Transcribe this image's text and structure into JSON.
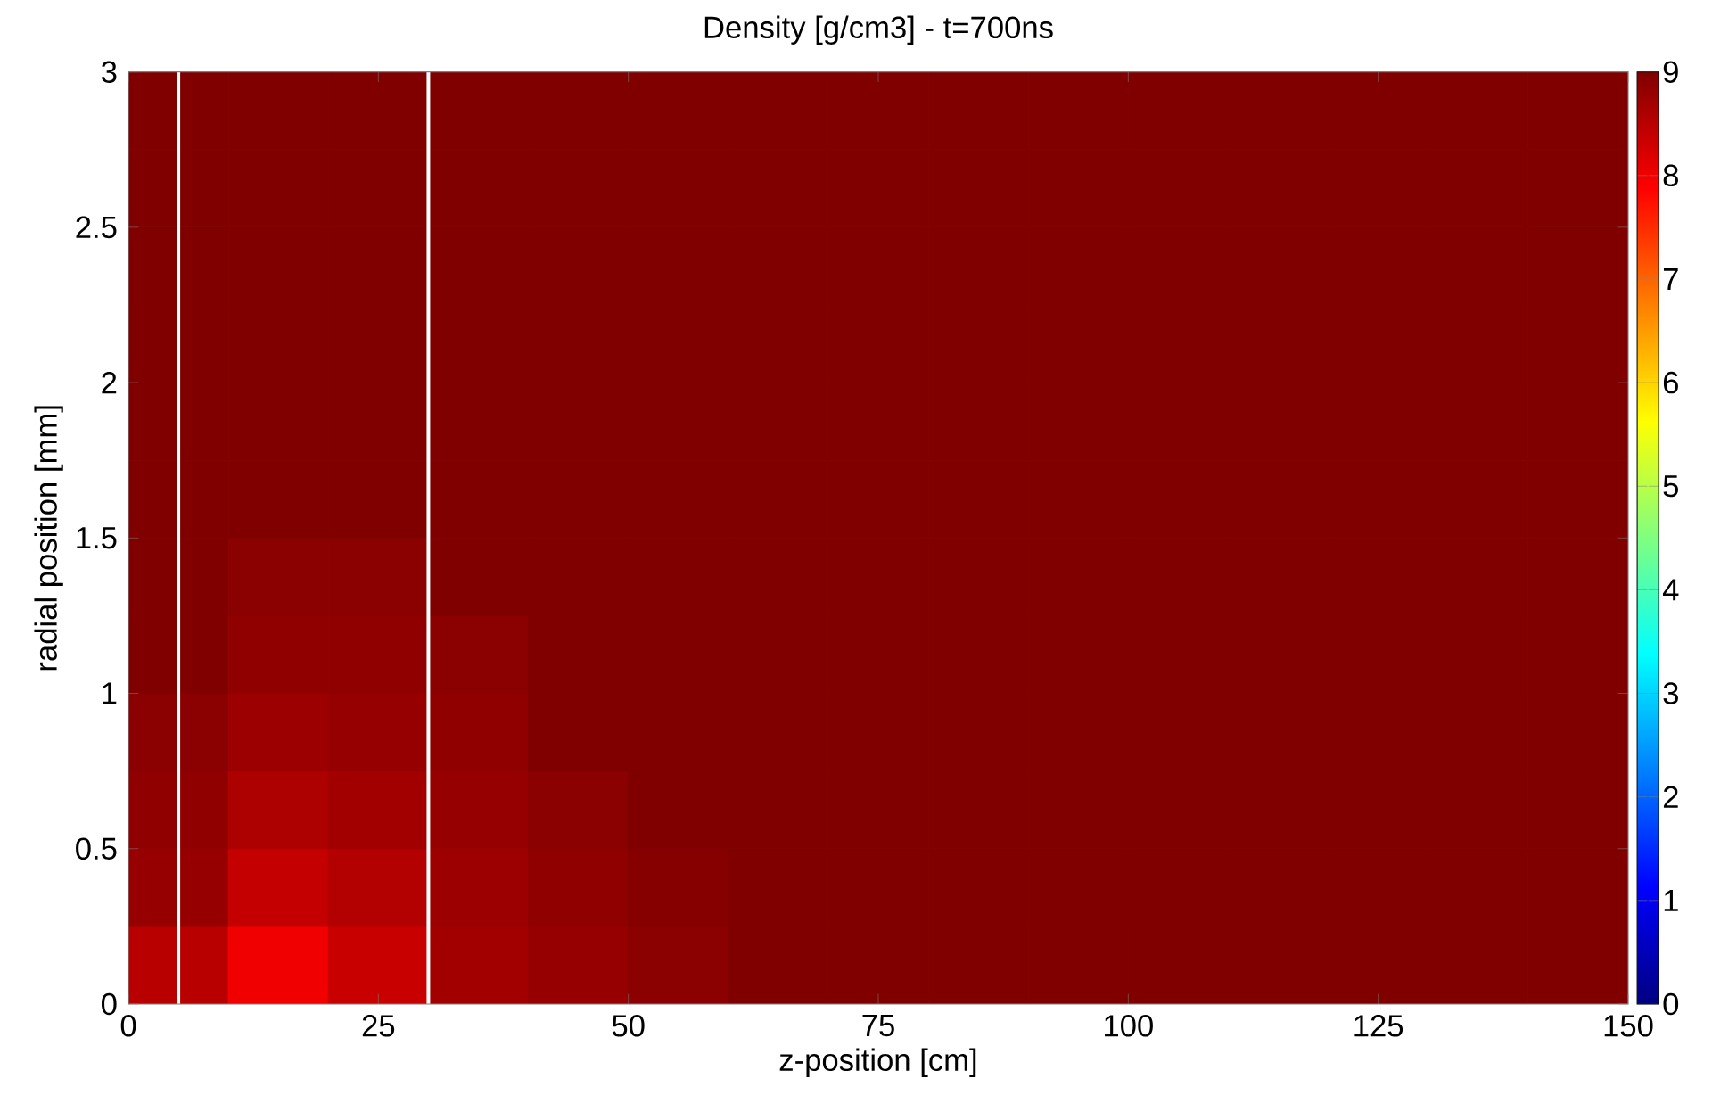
{
  "chart_data": {
    "type": "heatmap",
    "title": "Density [g/cm3] - t=700ns",
    "xlabel": "z-position [cm]",
    "ylabel": "radial position [mm]",
    "x": [
      5,
      15,
      25,
      35,
      45,
      55,
      65,
      75,
      85,
      95,
      105,
      115,
      125,
      135,
      145
    ],
    "y": [
      2.875,
      2.625,
      2.375,
      2.125,
      1.875,
      1.625,
      1.375,
      1.125,
      0.875,
      0.625,
      0.375,
      0.125
    ],
    "cells": [
      [
        9,
        9,
        9,
        9,
        9,
        9,
        9,
        9,
        9,
        9,
        9,
        9,
        9,
        9,
        9
      ],
      [
        9,
        9,
        9,
        9,
        9,
        9,
        9,
        9,
        9,
        9,
        9,
        9,
        9,
        9,
        9
      ],
      [
        9,
        9,
        9,
        9,
        9,
        9,
        9,
        9,
        9,
        9,
        9,
        9,
        9,
        9,
        9
      ],
      [
        9,
        9,
        9,
        9,
        9,
        9,
        9,
        9,
        9,
        9,
        9,
        9,
        9,
        9,
        9
      ],
      [
        9,
        9,
        9,
        9,
        9,
        9,
        9,
        9,
        9,
        9,
        9,
        9,
        9,
        9,
        9
      ],
      [
        9,
        9,
        9,
        9,
        9,
        9,
        9,
        9,
        9,
        9,
        9,
        9,
        9,
        9,
        9
      ],
      [
        9,
        8.9,
        8.9,
        9,
        9,
        9,
        9,
        9,
        9,
        9,
        9,
        9,
        9,
        9,
        9
      ],
      [
        9,
        8.85,
        8.85,
        8.9,
        9,
        9,
        9,
        9,
        9,
        9,
        9,
        9,
        9,
        9,
        9
      ],
      [
        8.9,
        8.75,
        8.8,
        8.85,
        9,
        9,
        9,
        9,
        9,
        9,
        9,
        9,
        9,
        9,
        9
      ],
      [
        8.85,
        8.6,
        8.7,
        8.8,
        8.9,
        9,
        9,
        9,
        9,
        9,
        9,
        9,
        9,
        9,
        9
      ],
      [
        8.8,
        8.4,
        8.55,
        8.75,
        8.85,
        8.95,
        9,
        9,
        9,
        9,
        9,
        9,
        9,
        9,
        9
      ],
      [
        8.5,
        8.0,
        8.35,
        8.7,
        8.8,
        8.9,
        9,
        9,
        9,
        9,
        9,
        9,
        9,
        9,
        9
      ]
    ],
    "clim": [
      0,
      9
    ],
    "cticks": [
      0,
      1,
      2,
      3,
      4,
      5,
      6,
      7,
      8,
      9
    ],
    "xlim": [
      0,
      150
    ],
    "ylim": [
      0,
      3
    ],
    "xticks": [
      0,
      25,
      50,
      75,
      100,
      125,
      150
    ],
    "yticks": [
      0,
      0.5,
      1,
      1.5,
      2,
      2.5,
      3
    ],
    "ref_lines": [
      {
        "axis": "x",
        "value": 5,
        "color": "#ffffff"
      },
      {
        "axis": "x",
        "value": 30,
        "color": "#ffffff"
      }
    ]
  }
}
